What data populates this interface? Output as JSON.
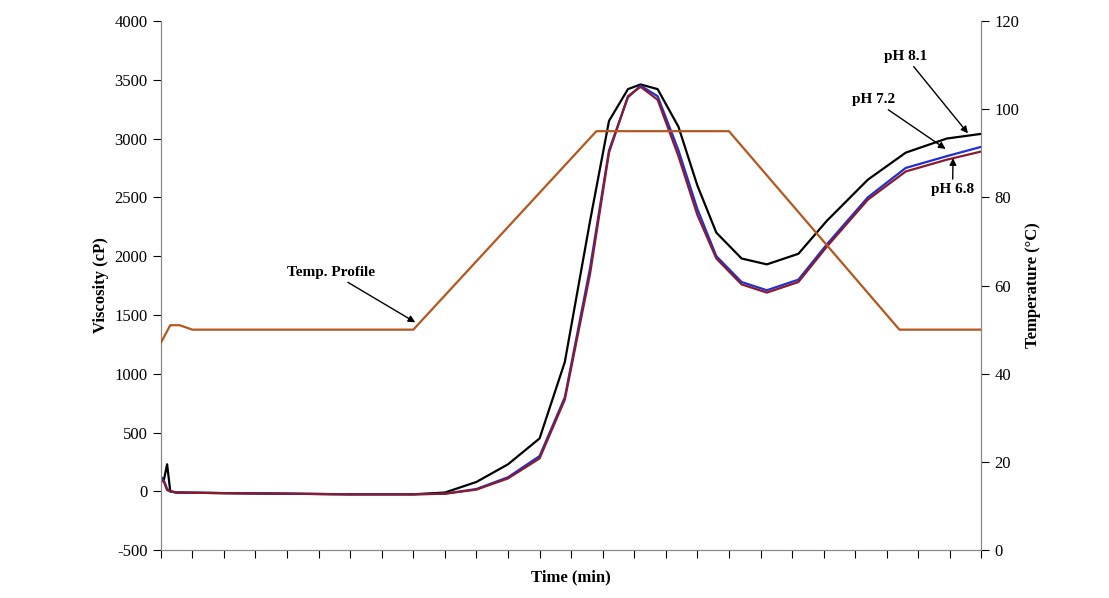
{
  "chart_data": {
    "type": "line",
    "x_label": "Time (min)",
    "y_label": "Viscosity (cP)",
    "y2_label": "Temperature (°C)",
    "xlim": [
      0,
      13
    ],
    "xticks": [
      0,
      0.5,
      1,
      1.5,
      2,
      2.5,
      3,
      3.5,
      4,
      4.5,
      5,
      5.5,
      6,
      6.5,
      7,
      7.5,
      8,
      8.5,
      9,
      9.5,
      10,
      10.5,
      11,
      11.5,
      12,
      12.5,
      13
    ],
    "ylim": [
      -500,
      4000
    ],
    "yticks": [
      -500,
      0,
      500,
      1000,
      1500,
      2000,
      2500,
      3000,
      3500,
      4000
    ],
    "y2lim": [
      0,
      120
    ],
    "y2ticks": [
      0,
      20,
      40,
      60,
      80,
      100,
      120
    ],
    "tick_labels": "y",
    "grid": false,
    "series": [
      {
        "name": "pH 8.1",
        "color": "#000000",
        "x": [
          0,
          0.05,
          0.1,
          0.15,
          0.25,
          1,
          2,
          3,
          4,
          4.5,
          5,
          5.5,
          6,
          6.4,
          6.8,
          7.1,
          7.4,
          7.6,
          7.87,
          8.2,
          8.5,
          8.8,
          9.2,
          9.6,
          10.1,
          10.55,
          11.2,
          11.8,
          12.45,
          13
        ],
        "values": [
          120,
          100,
          230,
          0,
          -10,
          -15,
          -20,
          -25,
          -25,
          -10,
          80,
          230,
          450,
          1100,
          2300,
          3150,
          3420,
          3460,
          3420,
          3100,
          2600,
          2200,
          1980,
          1930,
          2020,
          2300,
          2650,
          2880,
          3000,
          3040
        ]
      },
      {
        "name": "pH 7.2",
        "color": "#1f2fd6",
        "x": [
          0,
          0.05,
          0.1,
          0.15,
          0.25,
          1,
          2,
          3,
          4,
          4.5,
          5,
          5.5,
          6,
          6.4,
          6.8,
          7.1,
          7.4,
          7.6,
          7.87,
          8.2,
          8.5,
          8.8,
          9.2,
          9.6,
          10.1,
          10.55,
          11.2,
          11.8,
          12.45,
          13
        ],
        "values": [
          110,
          90,
          20,
          0,
          -10,
          -15,
          -20,
          -25,
          -25,
          -20,
          20,
          120,
          300,
          800,
          1900,
          2900,
          3350,
          3450,
          3360,
          2900,
          2400,
          2000,
          1780,
          1710,
          1800,
          2100,
          2500,
          2750,
          2850,
          2930
        ]
      },
      {
        "name": "pH 6.8",
        "color": "#8b1a2b",
        "x": [
          0,
          0.05,
          0.1,
          0.15,
          0.25,
          1,
          2,
          3,
          4,
          4.5,
          5,
          5.5,
          6,
          6.4,
          6.8,
          7.1,
          7.4,
          7.6,
          7.87,
          8.2,
          8.5,
          8.8,
          9.2,
          9.6,
          10.1,
          10.55,
          11.2,
          11.8,
          12.45,
          13
        ],
        "values": [
          100,
          80,
          10,
          0,
          -10,
          -15,
          -20,
          -25,
          -25,
          -20,
          15,
          110,
          280,
          780,
          1850,
          2880,
          3360,
          3440,
          3330,
          2850,
          2350,
          1980,
          1760,
          1690,
          1780,
          2080,
          2480,
          2720,
          2820,
          2890
        ]
      },
      {
        "name": "Temp. Profile",
        "color": "#b5561e",
        "axis": "y2",
        "x": [
          0,
          0.15,
          0.3,
          0.5,
          4.0,
          6.9,
          9.0,
          11.7,
          13
        ],
        "values": [
          47,
          51,
          51,
          50,
          50,
          95,
          95,
          50,
          50
        ]
      }
    ]
  }
}
